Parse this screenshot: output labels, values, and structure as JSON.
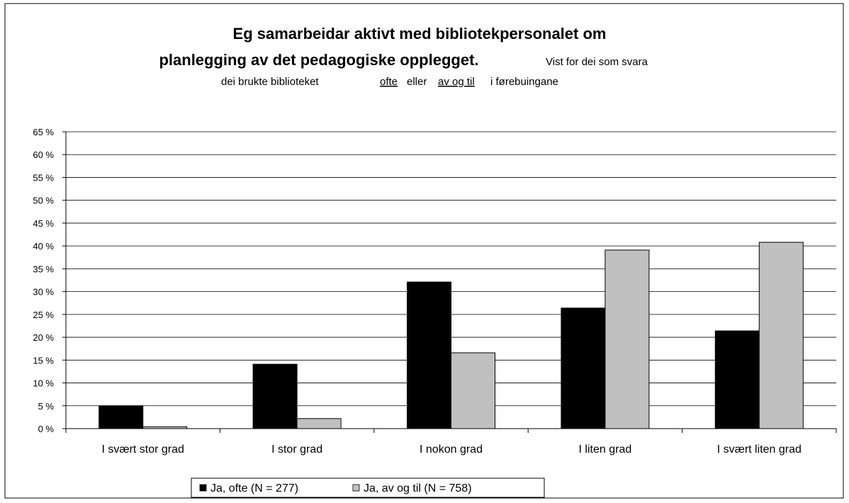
{
  "chart_data": {
    "type": "bar",
    "title": [
      "Eg  samarbeidar aktivt med bibliotekpersonalet om",
      "planlegging av det pedagogiske opplegget."
    ],
    "subtitle": [
      "Vist for dei som svara",
      "dei brukte biblioteket",
      "ofte",
      "eller",
      "av og til",
      "i førebuingane"
    ],
    "categories": [
      "I svært stor grad",
      "I stor grad",
      "I nokon grad",
      "I liten grad",
      "I svært liten grad"
    ],
    "series": [
      {
        "name": "Ja, ofte (N = 277)",
        "color": "#000000",
        "values": [
          5.0,
          14.1,
          32.1,
          26.4,
          21.4
        ]
      },
      {
        "name": "Ja, av og til (N = 758)",
        "color": "#c0c0c0",
        "values": [
          0.4,
          2.2,
          16.6,
          39.1,
          40.8
        ]
      }
    ],
    "ylim": [
      0,
      65
    ],
    "yticks": [
      {
        "value": 0,
        "label": "0 %"
      },
      {
        "value": 5,
        "label": "5 %"
      },
      {
        "value": 10,
        "label": "10 %"
      },
      {
        "value": 15,
        "label": "15 %"
      },
      {
        "value": 20,
        "label": "20 %"
      },
      {
        "value": 25,
        "label": "25 %"
      },
      {
        "value": 30,
        "label": "30 %"
      },
      {
        "value": 35,
        "label": "35 %"
      },
      {
        "value": 40,
        "label": "40 %"
      },
      {
        "value": 45,
        "label": "45 %"
      },
      {
        "value": 50,
        "label": "50 %"
      },
      {
        "value": 55,
        "label": "55 %"
      },
      {
        "value": 60,
        "label": "60 %"
      },
      {
        "value": 65,
        "label": "65 %"
      }
    ],
    "grid": true,
    "legend": "bottom"
  }
}
